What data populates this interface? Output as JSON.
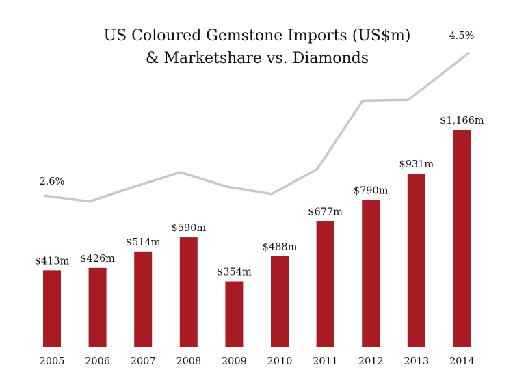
{
  "chart_data": {
    "type": "bar",
    "title_line1": "US Coloured Gemstone Imports (US$m)",
    "title_line2": "& Marketshare vs. Diamonds",
    "categories": [
      "2005",
      "2006",
      "2007",
      "2008",
      "2009",
      "2010",
      "2011",
      "2012",
      "2013",
      "2014"
    ],
    "values": [
      413,
      426,
      514,
      590,
      354,
      488,
      677,
      790,
      931,
      1166
    ],
    "value_labels": [
      "$413m",
      "$426m",
      "$514m",
      "$590m",
      "$354m",
      "$488m",
      "$677m",
      "$790m",
      "$931m",
      "$1,166m"
    ],
    "share_line": {
      "values": [
        2.6,
        2.52,
        2.72,
        2.91,
        2.72,
        2.62,
        2.95,
        3.86,
        3.87,
        4.5
      ],
      "labels": {
        "first": "2.6%",
        "last": "4.5%"
      }
    },
    "bar_color": "#a61c22",
    "line_color": "#c8c8c8"
  }
}
